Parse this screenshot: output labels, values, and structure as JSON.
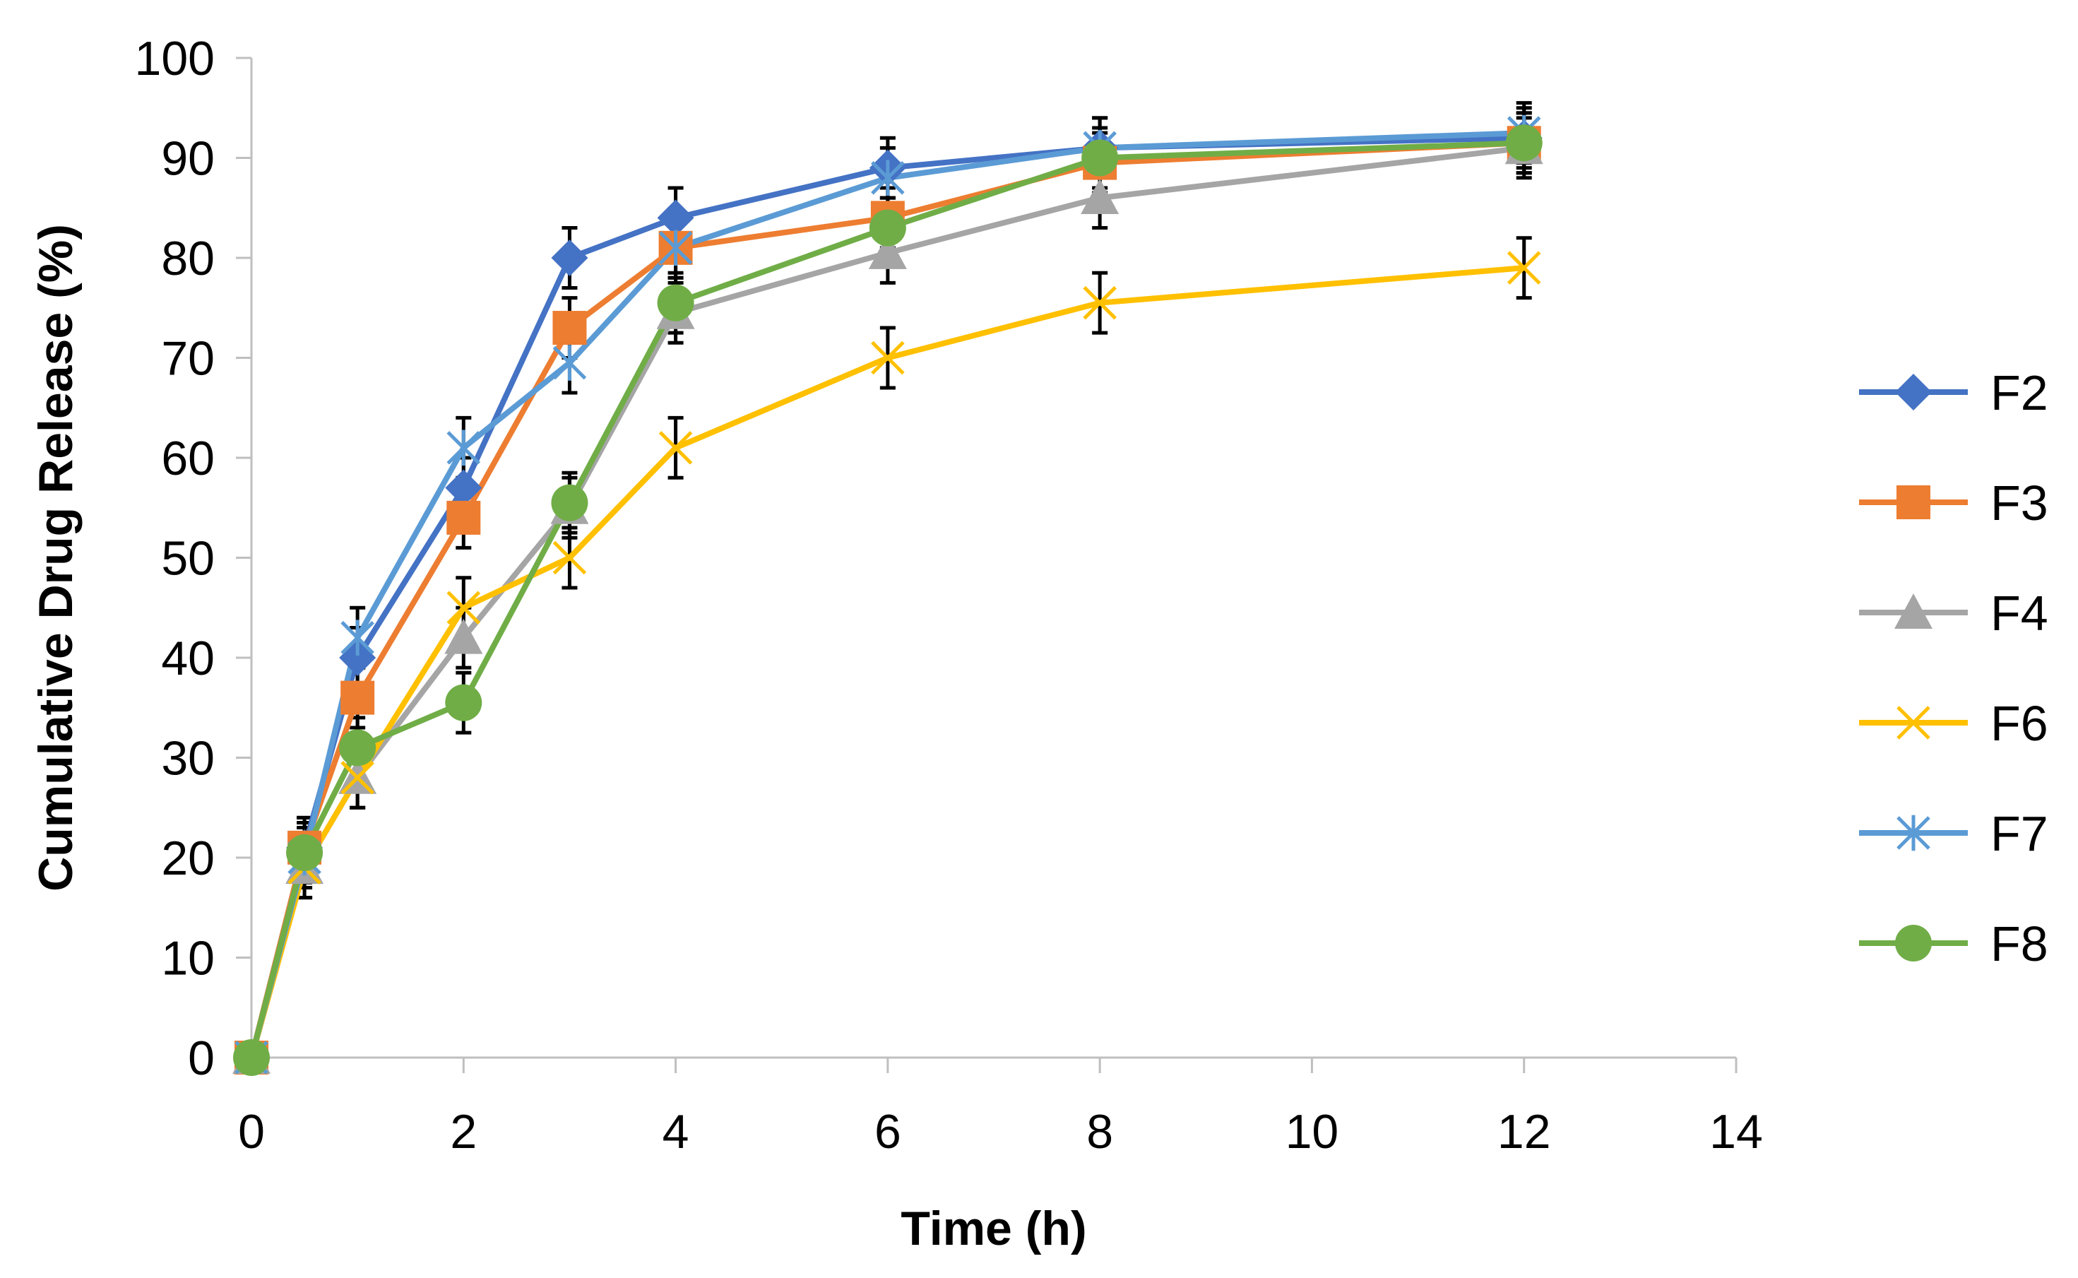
{
  "chart_data": {
    "type": "line",
    "title": "",
    "xlabel": "Time (h)",
    "ylabel": "Cumulative Drug Release (%)",
    "xlim": [
      0,
      14
    ],
    "ylim": [
      0,
      100
    ],
    "xticks": [
      0,
      2,
      4,
      6,
      8,
      10,
      12,
      14
    ],
    "yticks": [
      0,
      10,
      20,
      30,
      40,
      50,
      60,
      70,
      80,
      90,
      100
    ],
    "x": [
      0,
      0.5,
      1,
      2,
      3,
      4,
      6,
      8,
      12
    ],
    "legend_position": "right",
    "grid": false,
    "series": [
      {
        "name": "F2",
        "color": "#4472C4",
        "marker": "diamond",
        "values": [
          0,
          21,
          40,
          57,
          80,
          84,
          89,
          91,
          92
        ],
        "errors": [
          0,
          3,
          3,
          3,
          3,
          3,
          3,
          3,
          3
        ]
      },
      {
        "name": "F3",
        "color": "#ED7D31",
        "marker": "square",
        "values": [
          0,
          21,
          36,
          54,
          73,
          81,
          84,
          89.5,
          91.5
        ],
        "errors": [
          0,
          3,
          3,
          3,
          3,
          3,
          3,
          3,
          3
        ]
      },
      {
        "name": "F4",
        "color": "#A5A5A5",
        "marker": "triangle",
        "values": [
          0,
          19,
          28,
          42,
          55,
          74.5,
          80.5,
          86,
          91
        ],
        "errors": [
          0,
          3,
          3,
          3,
          3,
          3,
          3,
          3,
          3
        ]
      },
      {
        "name": "F6",
        "color": "#FFC000",
        "marker": "x",
        "values": [
          0,
          19,
          28,
          45,
          50,
          61,
          70,
          75.5,
          79
        ],
        "errors": [
          0,
          3,
          3,
          3,
          3,
          3,
          3,
          3,
          3
        ]
      },
      {
        "name": "F7",
        "color": "#5B9BD5",
        "marker": "asterisk",
        "values": [
          0,
          20,
          42,
          61,
          69.5,
          81,
          88,
          91,
          92.5
        ],
        "errors": [
          0,
          3,
          3,
          3,
          3,
          3,
          3,
          3,
          3
        ]
      },
      {
        "name": "F8",
        "color": "#70AD47",
        "marker": "circle",
        "values": [
          0,
          20.5,
          31,
          35.5,
          55.5,
          75.5,
          83,
          90,
          91.5
        ],
        "errors": [
          0,
          3,
          3,
          3,
          3,
          3,
          3,
          3,
          3
        ]
      }
    ]
  }
}
